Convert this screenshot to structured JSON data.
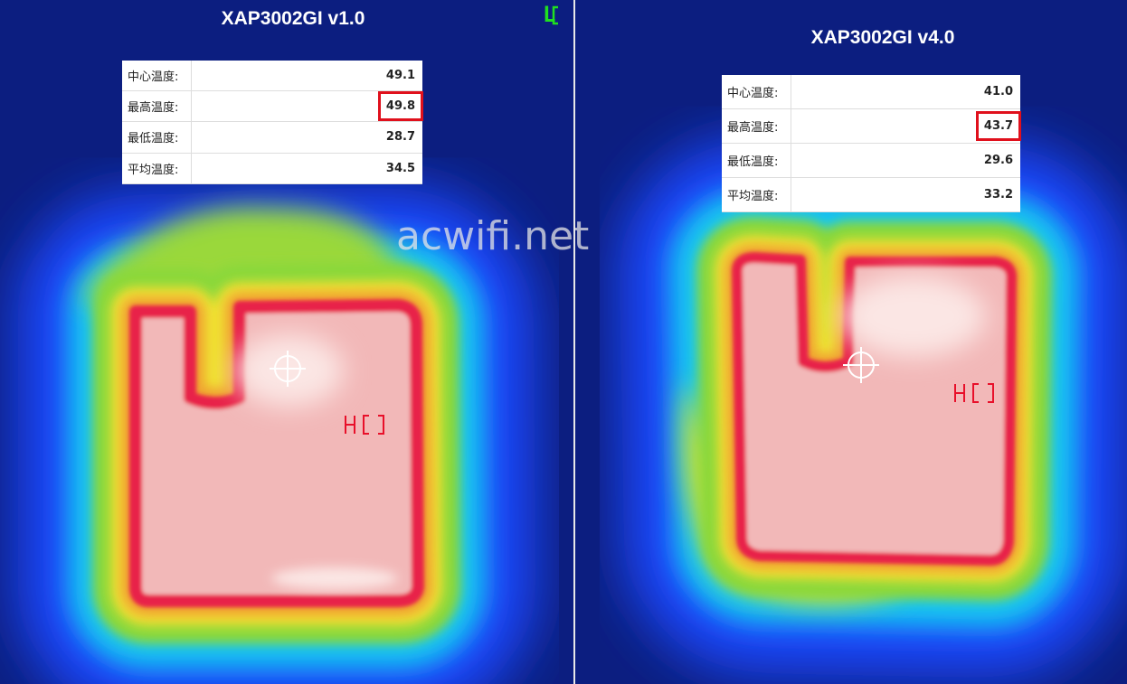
{
  "watermark": "acwifi.net",
  "corner_mark": "L",
  "panels": [
    {
      "title": "XAP3002GI v1.0",
      "table": {
        "rows": [
          [
            "中心温度:",
            "49.1"
          ],
          [
            "最高温度:",
            "49.8"
          ],
          [
            "最低温度:",
            "28.7"
          ],
          [
            "平均温度:",
            "34.5"
          ]
        ]
      }
    },
    {
      "title": "XAP3002GI v4.0",
      "table": {
        "rows": [
          [
            "中心温度:",
            "41.0"
          ],
          [
            "最高温度:",
            "43.7"
          ],
          [
            "最低温度:",
            "29.6"
          ],
          [
            "平均温度:",
            "33.2"
          ]
        ]
      }
    }
  ]
}
